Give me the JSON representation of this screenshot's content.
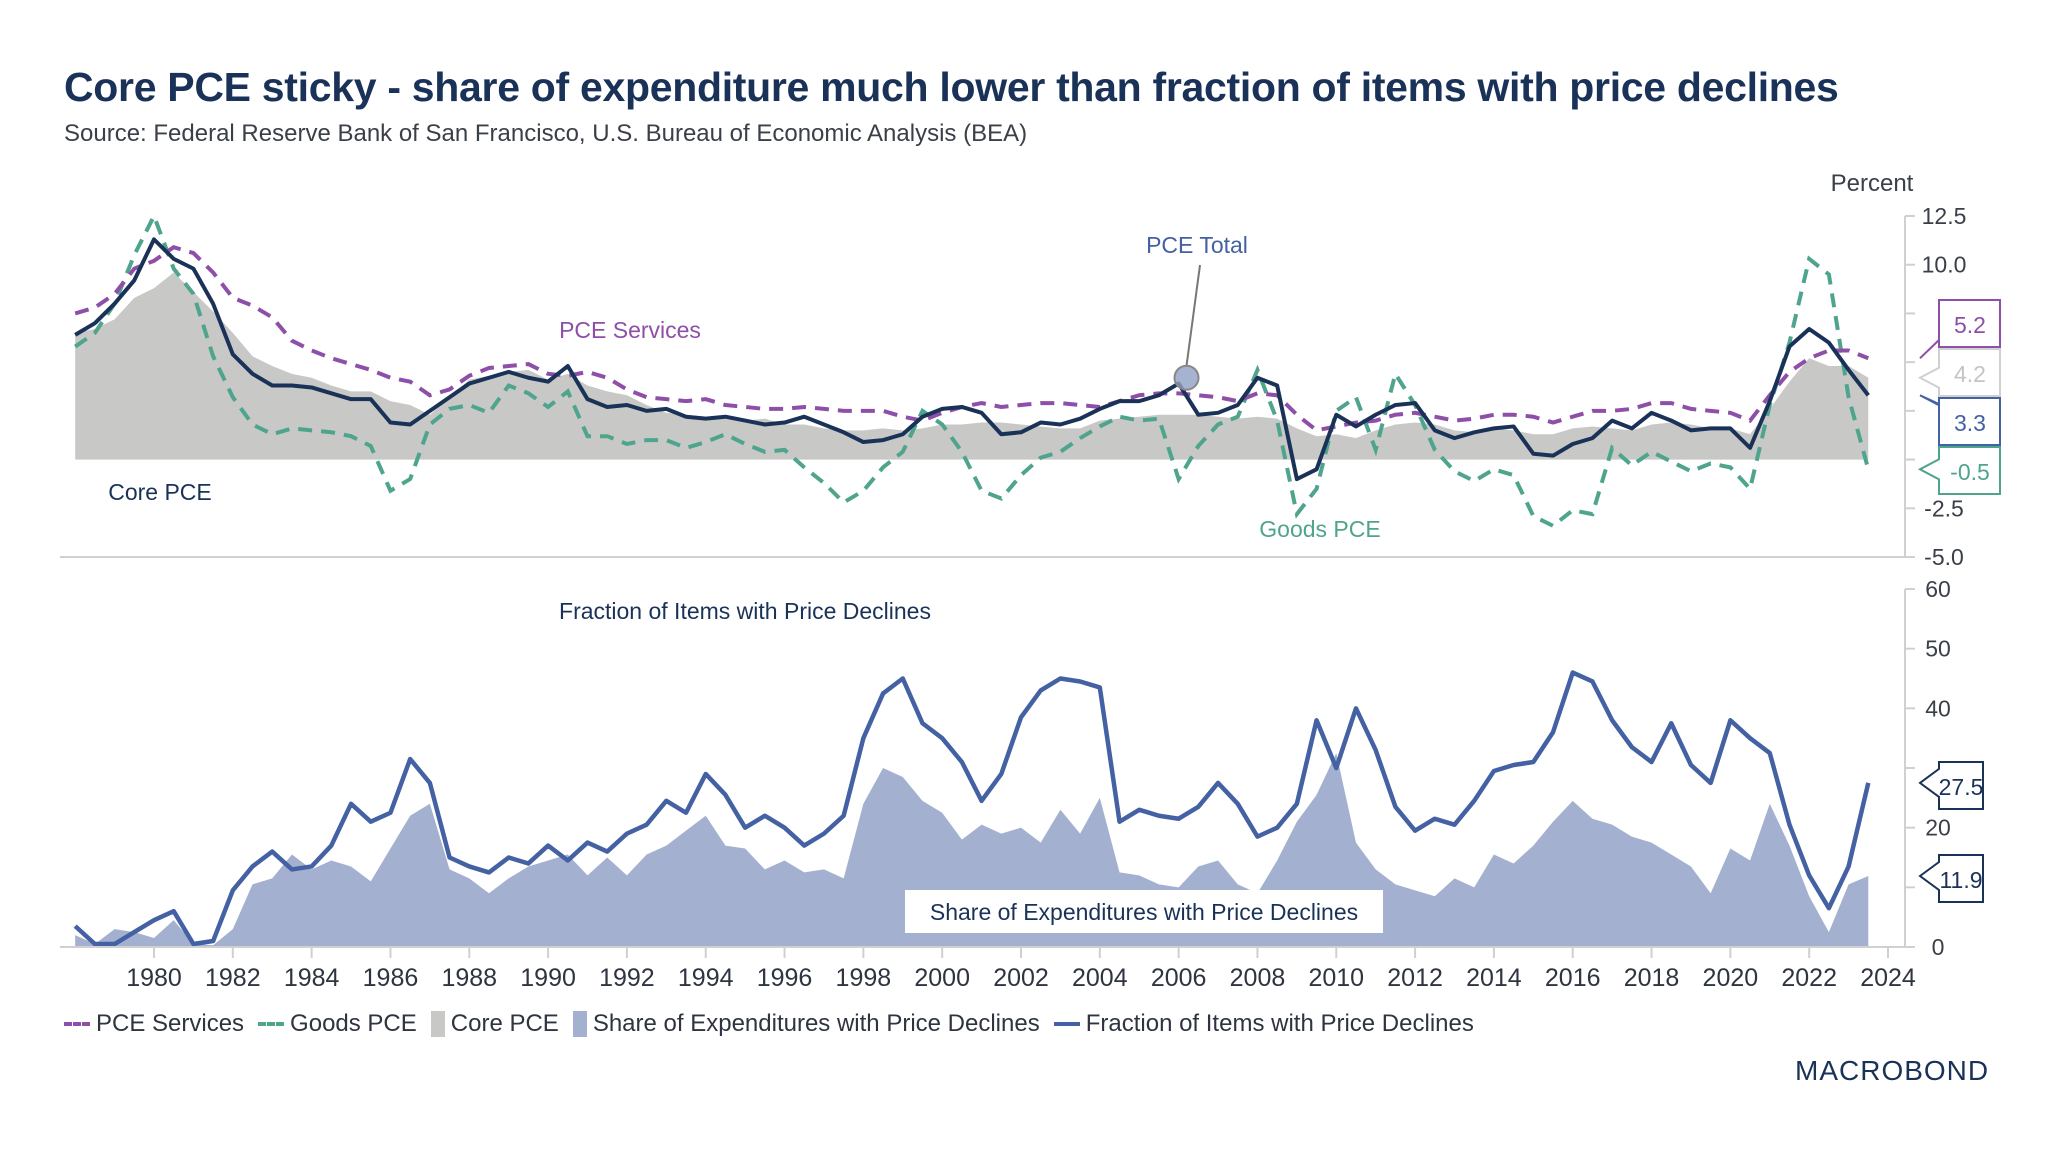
{
  "header": {
    "title": "Core PCE sticky - share of expenditure much lower than fraction of items with price declines",
    "subtitle": "Source: Federal Reserve Bank of San Francisco, U.S. Bureau of Economic Analysis (BEA)"
  },
  "branding": {
    "logo_text": "MACROBOND"
  },
  "colors": {
    "pce_services": "#8e4fa8",
    "goods_pce": "#4fa48e",
    "core_pce": "#c8c9c7",
    "pce_total": "#1a3258",
    "share_expenditures": "#a3b0d0",
    "fraction_items": "#4461a3",
    "text": "#3a3f48",
    "axis": "#d0d0d0"
  },
  "legend": [
    {
      "key": "pce_services",
      "label": "PCE Services",
      "style": "dash"
    },
    {
      "key": "goods_pce",
      "label": "Goods PCE",
      "style": "dash"
    },
    {
      "key": "core_pce",
      "label": "Core PCE",
      "style": "box"
    },
    {
      "key": "share_expenditures",
      "label": "Share of Expenditures with Price Declines",
      "style": "box"
    },
    {
      "key": "fraction_items",
      "label": "Fraction of Items with Price Declines",
      "style": "line"
    }
  ],
  "chart_data": [
    {
      "type": "line",
      "panel": "top",
      "title": "Core PCE sticky - share of expenditure much lower than fraction of items with price declines",
      "ylabel": "Percent",
      "ylim": [
        -5.0,
        12.5
      ],
      "yticks": [
        12.5,
        10.0,
        7.5,
        5.0,
        2.5,
        0,
        -2.5,
        -5.0
      ],
      "ytick_labels_shown": [
        "12.5",
        "10.0",
        "-2.5",
        "-5.0"
      ],
      "xlim": [
        1978.0,
        2024.5
      ],
      "grid": false,
      "annotations": [
        {
          "text": "PCE Services",
          "series": "pce_services"
        },
        {
          "text": "PCE Total",
          "series": "pce_total",
          "year": 2006.2
        },
        {
          "text": "Core PCE",
          "series": "core_pce"
        },
        {
          "text": "Goods PCE",
          "series": "goods_pce"
        }
      ],
      "end_labels": [
        {
          "series": "pce_services",
          "value": 5.2
        },
        {
          "series": "core_pce",
          "value": 4.2
        },
        {
          "series": "pce_total",
          "value": 3.3
        },
        {
          "series": "goods_pce",
          "value": -0.5
        }
      ],
      "x": [
        1978.0,
        1978.5,
        1979.0,
        1979.5,
        1980.0,
        1980.5,
        1981.0,
        1981.5,
        1982.0,
        1982.5,
        1983.0,
        1983.5,
        1984.0,
        1984.5,
        1985.0,
        1985.5,
        1986.0,
        1986.5,
        1987.0,
        1987.5,
        1988.0,
        1988.5,
        1989.0,
        1989.5,
        1990.0,
        1990.5,
        1991.0,
        1991.5,
        1992.0,
        1992.5,
        1993.0,
        1993.5,
        1994.0,
        1994.5,
        1995.0,
        1995.5,
        1996.0,
        1996.5,
        1997.0,
        1997.5,
        1998.0,
        1998.5,
        1999.0,
        1999.5,
        2000.0,
        2000.5,
        2001.0,
        2001.5,
        2002.0,
        2002.5,
        2003.0,
        2003.5,
        2004.0,
        2004.5,
        2005.0,
        2005.5,
        2006.0,
        2006.5,
        2007.0,
        2007.5,
        2008.0,
        2008.5,
        2009.0,
        2009.5,
        2010.0,
        2010.5,
        2011.0,
        2011.5,
        2012.0,
        2012.5,
        2013.0,
        2013.5,
        2014.0,
        2014.5,
        2015.0,
        2015.5,
        2016.0,
        2016.5,
        2017.0,
        2017.5,
        2018.0,
        2018.5,
        2019.0,
        2019.5,
        2020.0,
        2020.5,
        2021.0,
        2021.5,
        2022.0,
        2022.5,
        2023.0,
        2023.5
      ],
      "series": [
        {
          "name": "Core PCE",
          "key": "core_pce",
          "type": "area",
          "values": [
            6.5,
            6.7,
            7.2,
            8.3,
            8.8,
            9.6,
            8.6,
            7.6,
            6.5,
            5.3,
            4.8,
            4.4,
            4.2,
            3.8,
            3.5,
            3.5,
            3.0,
            2.8,
            2.3,
            3.2,
            4.1,
            4.3,
            4.5,
            4.6,
            4.1,
            4.4,
            3.8,
            3.5,
            3.3,
            2.8,
            2.4,
            2.3,
            2.2,
            2.1,
            2.0,
            2.1,
            1.8,
            1.8,
            1.6,
            1.5,
            1.5,
            1.6,
            1.5,
            1.6,
            1.8,
            1.8,
            1.9,
            1.9,
            1.8,
            1.7,
            1.6,
            1.6,
            2.0,
            2.1,
            2.2,
            2.3,
            2.3,
            2.3,
            2.2,
            2.1,
            2.2,
            2.1,
            1.6,
            1.2,
            1.3,
            1.1,
            1.5,
            1.8,
            1.9,
            1.8,
            1.5,
            1.4,
            1.6,
            1.5,
            1.3,
            1.3,
            1.6,
            1.7,
            1.6,
            1.5,
            1.8,
            1.9,
            1.8,
            1.6,
            1.6,
            1.3,
            2.6,
            4.0,
            5.2,
            4.8,
            4.8,
            4.2
          ]
        },
        {
          "name": "PCE Services",
          "key": "pce_services",
          "type": "dashed-line",
          "values": [
            7.5,
            7.8,
            8.5,
            9.8,
            10.2,
            10.9,
            10.6,
            9.6,
            8.3,
            7.9,
            7.3,
            6.1,
            5.6,
            5.2,
            4.9,
            4.6,
            4.2,
            4.0,
            3.3,
            3.6,
            4.3,
            4.7,
            4.8,
            4.9,
            4.4,
            4.3,
            4.5,
            4.2,
            3.6,
            3.2,
            3.1,
            3.0,
            3.1,
            2.8,
            2.7,
            2.6,
            2.6,
            2.7,
            2.6,
            2.5,
            2.5,
            2.5,
            2.2,
            2.0,
            2.4,
            2.7,
            2.9,
            2.7,
            2.8,
            2.9,
            2.9,
            2.8,
            2.7,
            3.0,
            3.3,
            3.4,
            3.4,
            3.3,
            3.2,
            3.0,
            3.4,
            3.3,
            2.3,
            1.5,
            1.7,
            1.9,
            2.0,
            2.3,
            2.4,
            2.2,
            2.0,
            2.1,
            2.3,
            2.3,
            2.2,
            1.9,
            2.2,
            2.5,
            2.5,
            2.6,
            2.9,
            2.9,
            2.6,
            2.5,
            2.4,
            2.0,
            3.3,
            4.5,
            5.2,
            5.6,
            5.6,
            5.2
          ]
        },
        {
          "name": "Goods PCE",
          "key": "goods_pce",
          "type": "dashed-line",
          "values": [
            5.8,
            6.5,
            8.0,
            10.5,
            12.5,
            9.8,
            8.5,
            5.3,
            3.2,
            1.8,
            1.3,
            1.6,
            1.5,
            1.4,
            1.2,
            0.7,
            -1.6,
            -1.0,
            1.8,
            2.6,
            2.8,
            2.4,
            3.8,
            3.4,
            2.7,
            3.5,
            1.2,
            1.2,
            0.8,
            1.0,
            1.0,
            0.6,
            0.9,
            1.3,
            0.8,
            0.4,
            0.5,
            -0.4,
            -1.2,
            -2.2,
            -1.6,
            -0.4,
            0.4,
            2.5,
            1.8,
            0.4,
            -1.6,
            -2.0,
            -0.8,
            0.1,
            0.4,
            1.1,
            1.7,
            2.2,
            2.0,
            2.1,
            -1.0,
            0.7,
            1.8,
            2.2,
            4.6,
            2.0,
            -2.8,
            -1.5,
            2.5,
            3.2,
            0.5,
            4.4,
            2.8,
            0.5,
            -0.6,
            -1.1,
            -0.5,
            -0.8,
            -2.9,
            -3.4,
            -2.6,
            -2.8,
            0.6,
            -0.3,
            0.4,
            -0.1,
            -0.6,
            -0.2,
            -0.4,
            -1.5,
            2.8,
            6.0,
            10.3,
            9.5,
            3.2,
            -0.5
          ]
        },
        {
          "name": "PCE Total",
          "key": "pce_total",
          "type": "line",
          "values": [
            6.4,
            7.0,
            8.0,
            9.2,
            11.3,
            10.3,
            9.8,
            8.0,
            5.4,
            4.4,
            3.8,
            3.8,
            3.7,
            3.4,
            3.1,
            3.1,
            1.9,
            1.8,
            2.5,
            3.2,
            3.9,
            4.2,
            4.5,
            4.2,
            4.0,
            4.8,
            3.1,
            2.7,
            2.8,
            2.5,
            2.6,
            2.2,
            2.1,
            2.2,
            2.0,
            1.8,
            1.9,
            2.2,
            1.8,
            1.4,
            0.9,
            1.0,
            1.3,
            2.2,
            2.6,
            2.7,
            2.4,
            1.3,
            1.4,
            1.9,
            1.8,
            2.1,
            2.6,
            3.0,
            3.0,
            3.3,
            3.9,
            2.3,
            2.4,
            2.8,
            4.2,
            3.8,
            -1.0,
            -0.5,
            2.3,
            1.7,
            2.3,
            2.8,
            2.9,
            1.5,
            1.1,
            1.4,
            1.6,
            1.7,
            0.3,
            0.2,
            0.8,
            1.1,
            2.0,
            1.6,
            2.4,
            2.0,
            1.5,
            1.6,
            1.6,
            0.6,
            3.0,
            5.8,
            6.7,
            6.0,
            4.6,
            3.3
          ]
        }
      ]
    },
    {
      "type": "area",
      "panel": "bottom",
      "ylim": [
        0,
        60
      ],
      "yticks": [
        60,
        50,
        40,
        30,
        20,
        10,
        0
      ],
      "ytick_labels_shown": [
        "60",
        "50",
        "40",
        "20",
        "0"
      ],
      "xlim": [
        1978.0,
        2024.5
      ],
      "xticks": [
        1980,
        1982,
        1984,
        1986,
        1988,
        1990,
        1992,
        1994,
        1996,
        1998,
        2000,
        2002,
        2004,
        2006,
        2008,
        2010,
        2012,
        2014,
        2016,
        2018,
        2020,
        2022,
        2024
      ],
      "xtick_labels": [
        "1980",
        "1982",
        "1984",
        "1986",
        "1988",
        "1990",
        "1992",
        "1994",
        "1996",
        "1998",
        "2000",
        "2002",
        "2004",
        "2006",
        "2008",
        "2010",
        "2012",
        "2014",
        "2016",
        "2018",
        "2020",
        "2022",
        "2024"
      ],
      "grid": false,
      "annotations": [
        {
          "text": "Fraction of Items with Price Declines",
          "series": "fraction_items"
        },
        {
          "text": "Share of Expenditures with Price Declines",
          "series": "share_expenditures"
        }
      ],
      "end_labels": [
        {
          "series": "fraction_items",
          "value": 27.5
        },
        {
          "series": "share_expenditures",
          "value": 11.9
        }
      ],
      "x": [
        1978.0,
        1978.5,
        1979.0,
        1979.5,
        1980.0,
        1980.5,
        1981.0,
        1981.5,
        1982.0,
        1982.5,
        1983.0,
        1983.5,
        1984.0,
        1984.5,
        1985.0,
        1985.5,
        1986.0,
        1986.5,
        1987.0,
        1987.5,
        1988.0,
        1988.5,
        1989.0,
        1989.5,
        1990.0,
        1990.5,
        1991.0,
        1991.5,
        1992.0,
        1992.5,
        1993.0,
        1993.5,
        1994.0,
        1994.5,
        1995.0,
        1995.5,
        1996.0,
        1996.5,
        1997.0,
        1997.5,
        1998.0,
        1998.5,
        1999.0,
        1999.5,
        2000.0,
        2000.5,
        2001.0,
        2001.5,
        2002.0,
        2002.5,
        2003.0,
        2003.5,
        2004.0,
        2004.5,
        2005.0,
        2005.5,
        2006.0,
        2006.5,
        2007.0,
        2007.5,
        2008.0,
        2008.5,
        2009.0,
        2009.5,
        2010.0,
        2010.5,
        2011.0,
        2011.5,
        2012.0,
        2012.5,
        2013.0,
        2013.5,
        2014.0,
        2014.5,
        2015.0,
        2015.5,
        2016.0,
        2016.5,
        2017.0,
        2017.5,
        2018.0,
        2018.5,
        2019.0,
        2019.5,
        2020.0,
        2020.5,
        2021.0,
        2021.5,
        2022.0,
        2022.5,
        2023.0,
        2023.5
      ],
      "series": [
        {
          "name": "Share of Expenditures with Price Declines",
          "key": "share_expenditures",
          "type": "area",
          "values": [
            2.0,
            0.5,
            3.0,
            2.5,
            1.5,
            4.5,
            0.5,
            0.3,
            3.0,
            10.5,
            11.5,
            15.5,
            13.0,
            14.5,
            13.5,
            11.0,
            16.5,
            22.0,
            24.0,
            13.0,
            11.5,
            9.0,
            11.5,
            13.5,
            14.5,
            15.5,
            12.0,
            15.0,
            12.0,
            15.5,
            17.0,
            19.5,
            22.0,
            17.0,
            16.5,
            13.0,
            14.5,
            12.5,
            13.0,
            11.5,
            24.0,
            30.0,
            28.5,
            24.5,
            22.5,
            18.0,
            20.5,
            19.0,
            20.0,
            17.5,
            23.0,
            19.0,
            25.0,
            12.5,
            12.0,
            10.5,
            10.0,
            13.5,
            14.5,
            10.5,
            9.0,
            14.5,
            21.0,
            25.5,
            32.5,
            17.5,
            13.0,
            10.5,
            9.5,
            8.5,
            11.5,
            10.0,
            15.5,
            14.0,
            17.0,
            21.0,
            24.5,
            21.5,
            20.5,
            18.5,
            17.5,
            15.5,
            13.5,
            9.0,
            16.5,
            14.5,
            24.0,
            17.0,
            8.5,
            2.5,
            10.5,
            11.9
          ]
        },
        {
          "name": "Fraction of Items with Price Declines",
          "key": "fraction_items",
          "type": "line",
          "values": [
            3.5,
            0.5,
            0.5,
            2.5,
            4.5,
            6.0,
            0.5,
            1.0,
            9.5,
            13.5,
            16.0,
            13.0,
            13.5,
            17.0,
            24.0,
            21.0,
            22.5,
            31.5,
            27.5,
            15.0,
            13.5,
            12.5,
            15.0,
            14.0,
            17.0,
            14.5,
            17.5,
            16.0,
            19.0,
            20.5,
            24.5,
            22.5,
            29.0,
            25.5,
            20.0,
            22.0,
            20.0,
            17.0,
            19.0,
            22.0,
            35.0,
            42.5,
            45.0,
            37.5,
            35.0,
            31.0,
            24.5,
            29.0,
            38.5,
            43.0,
            45.0,
            44.5,
            43.5,
            21.0,
            23.0,
            22.0,
            21.5,
            23.5,
            27.5,
            24.0,
            18.5,
            20.0,
            24.0,
            38.0,
            30.0,
            40.0,
            33.0,
            23.5,
            19.5,
            21.5,
            20.5,
            24.5,
            29.5,
            30.5,
            31.0,
            36.0,
            46.0,
            44.5,
            38.0,
            33.5,
            31.0,
            37.5,
            30.5,
            27.5,
            38.0,
            35.0,
            32.5,
            20.5,
            12.0,
            6.5,
            13.5,
            27.5
          ]
        }
      ]
    }
  ]
}
